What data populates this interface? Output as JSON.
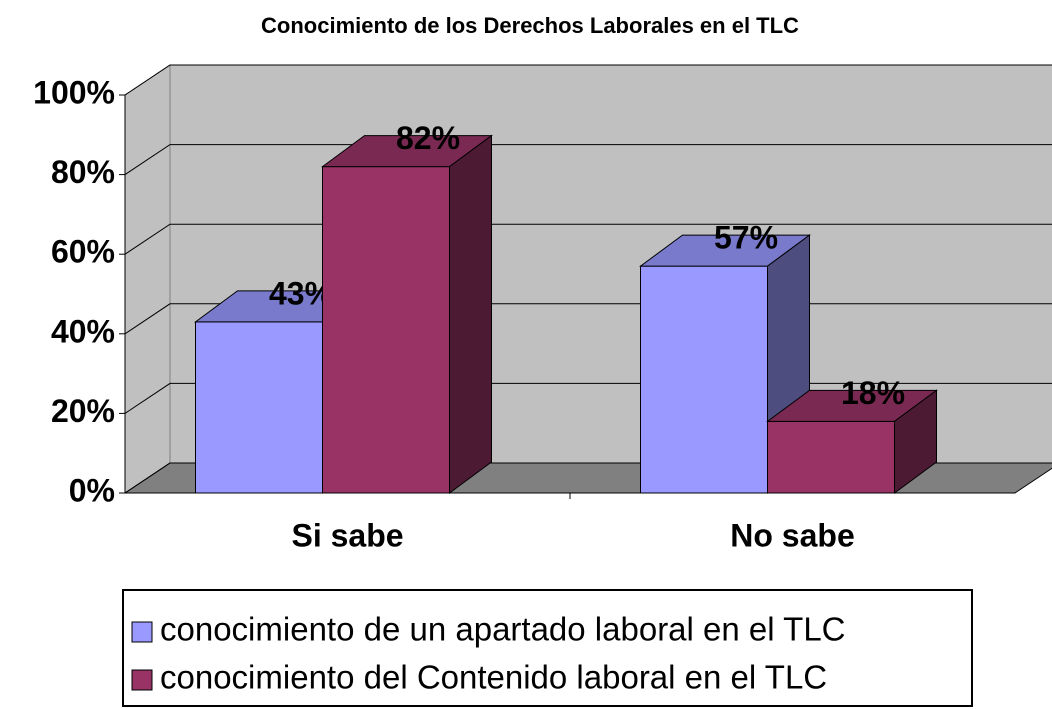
{
  "chart_data": {
    "type": "bar3d",
    "title": "Conocimiento de los Derechos Laborales en el TLC",
    "categories": [
      "Si sabe",
      "No sabe"
    ],
    "series": [
      {
        "name": "conocimiento de un apartado laboral en el TLC",
        "color": "#9999ff",
        "values": [
          43,
          57
        ],
        "value_labels": [
          "43%",
          "57%"
        ]
      },
      {
        "name": "conocimiento del Contenido laboral en el TLC",
        "color": "#993366",
        "values": [
          82,
          18
        ],
        "value_labels": [
          "82%",
          "18%"
        ]
      }
    ],
    "ylim": [
      0,
      100
    ],
    "yticks": [
      {
        "value": 0,
        "label": "0%"
      },
      {
        "value": 20,
        "label": "20%"
      },
      {
        "value": 40,
        "label": "40%"
      },
      {
        "value": 60,
        "label": "60%"
      },
      {
        "value": 80,
        "label": "80%"
      },
      {
        "value": 100,
        "label": "100%"
      }
    ],
    "grid": true,
    "legend": "bottom"
  }
}
